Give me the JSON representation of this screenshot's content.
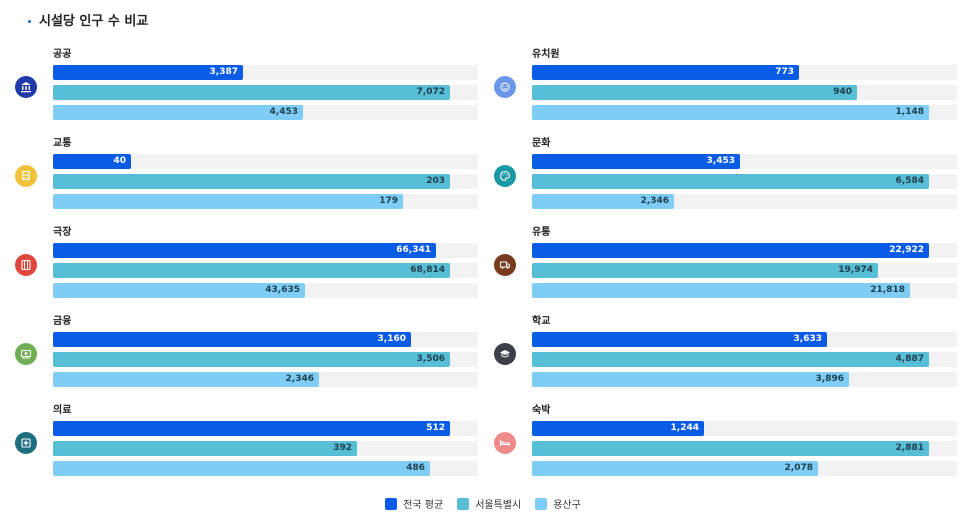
{
  "title": "시설당 인구 수 비교",
  "colors": {
    "national": "#0a5ce6",
    "seoul": "#58bdd6",
    "yongsan": "#7fcdf7"
  },
  "legend": [
    "전국 평균",
    "서울특별시",
    "용산구"
  ],
  "chart_data": {
    "type": "bar",
    "orientation": "horizontal",
    "title": "시설당 인구 수 비교",
    "series_names": [
      "전국 평균",
      "서울특별시",
      "용산구"
    ],
    "groups": [
      {
        "name": "공공",
        "icon": "bank-icon",
        "icon_color": "#1f3aa8",
        "values": [
          3387,
          7072,
          4453
        ]
      },
      {
        "name": "교통",
        "icon": "bus-icon",
        "icon_color": "#f2c13a",
        "values": [
          40,
          203,
          179
        ]
      },
      {
        "name": "극장",
        "icon": "theater-icon",
        "icon_color": "#e0463e",
        "values": [
          66341,
          68814,
          43635
        ]
      },
      {
        "name": "금융",
        "icon": "money-icon",
        "icon_color": "#6fae54",
        "values": [
          3160,
          3506,
          2346
        ]
      },
      {
        "name": "의료",
        "icon": "medical-icon",
        "icon_color": "#1d6e80",
        "values": [
          512,
          392,
          486
        ]
      },
      {
        "name": "유치원",
        "icon": "kindergarten-icon",
        "icon_color": "#6b96ea",
        "values": [
          773,
          940,
          1148
        ]
      },
      {
        "name": "문화",
        "icon": "palette-icon",
        "icon_color": "#1a98a6",
        "values": [
          3453,
          6584,
          2346
        ]
      },
      {
        "name": "유통",
        "icon": "truck-icon",
        "icon_color": "#7a3a1e",
        "values": [
          22922,
          19974,
          21818
        ]
      },
      {
        "name": "학교",
        "icon": "graduation-cap-icon",
        "icon_color": "#3a3f48",
        "values": [
          3633,
          4887,
          3896
        ]
      },
      {
        "name": "숙박",
        "icon": "bed-icon",
        "icon_color": "#ef8a8a",
        "values": [
          1244,
          2881,
          2078
        ]
      }
    ]
  }
}
